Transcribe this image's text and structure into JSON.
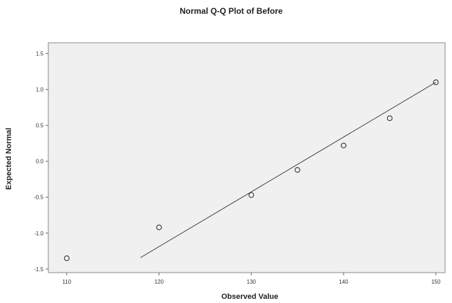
{
  "chart_data": {
    "type": "scatter",
    "title": "Normal Q-Q Plot of Before",
    "xlabel": "Observed Value",
    "ylabel": "Expected Normal",
    "xlim": [
      108,
      151
    ],
    "ylim": [
      -1.55,
      1.65
    ],
    "x_ticks": [
      110,
      120,
      130,
      140,
      150
    ],
    "x_tick_labels": [
      "110",
      "120",
      "130",
      "140",
      "150"
    ],
    "y_ticks": [
      1.5,
      1.0,
      0.5,
      0.0,
      -0.5,
      -1.0,
      -1.5
    ],
    "y_tick_labels": [
      "1.5",
      "1.0",
      "0.5",
      "0.0",
      "-0.5",
      "-1.0",
      "-1.5"
    ],
    "grid": false,
    "series": [
      {
        "x": [
          110,
          120,
          130,
          135,
          140,
          145,
          150
        ],
        "y": [
          -1.35,
          -0.92,
          -0.47,
          -0.12,
          0.22,
          0.6,
          1.1
        ]
      }
    ],
    "reference_line": {
      "x": [
        118,
        150
      ],
      "y": [
        -1.34,
        1.1
      ]
    },
    "colors": {
      "plot_background": "#f0f0f0",
      "frame": "#888888",
      "marker": "#333333",
      "line": "#444444"
    }
  }
}
